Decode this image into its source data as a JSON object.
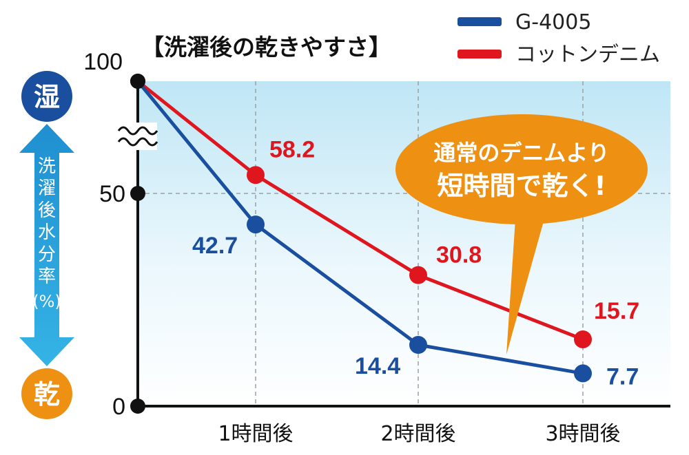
{
  "chart_data": {
    "type": "line",
    "title": "【洗濯後の乾きやすさ】",
    "categories": [
      "",
      "1時間後",
      "2時間後",
      "3時間後"
    ],
    "ylim": [
      0,
      100
    ],
    "yticks": [
      "100",
      "50",
      "0"
    ],
    "grid": true,
    "legend_position": "top-right",
    "series": [
      {
        "name": "G-4005",
        "color": "#1a4fa0",
        "values": [
          100,
          42.7,
          14.4,
          7.7
        ],
        "labels": [
          "",
          "42.7",
          "14.4",
          "7.7"
        ]
      },
      {
        "name": "コットンデニム",
        "color": "#e0161f",
        "values": [
          100,
          58.2,
          30.8,
          15.7
        ],
        "labels": [
          "",
          "58.2",
          "30.8",
          "15.7"
        ]
      }
    ]
  },
  "y_axis_side": {
    "top_label": "湿",
    "bottom_label": "乾",
    "axis_text_lines": [
      "洗",
      "濯",
      "後",
      "水",
      "分",
      "率",
      "(%)"
    ]
  },
  "callout": {
    "lines": [
      "通常のデニムより",
      "短時間で乾く!"
    ],
    "color": "#ee9012"
  },
  "colors": {
    "axis": "#111111",
    "plot_bg_top": "#bfe6f5",
    "arrow": "#2aa3dc",
    "wet_circle": "#1a4fa0",
    "dry_circle": "#ee9012"
  }
}
